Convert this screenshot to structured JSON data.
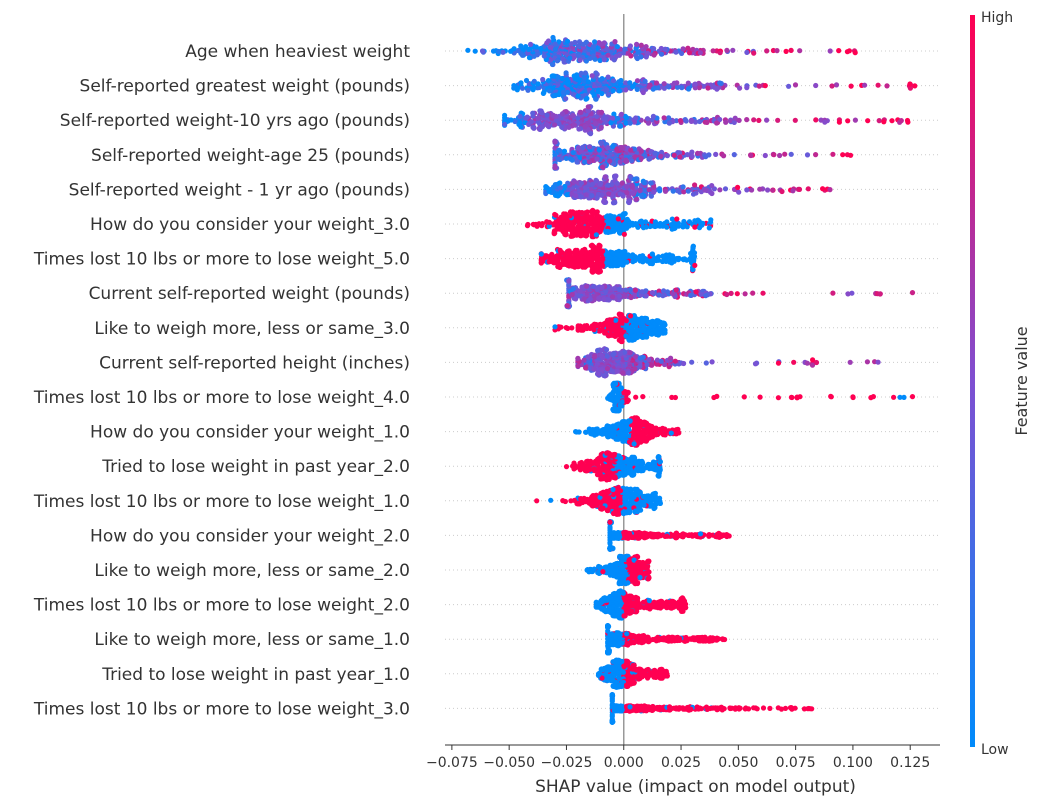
{
  "chart_data": {
    "type": "scatter",
    "subtype": "shap-beeswarm",
    "title": "",
    "xlabel": "SHAP value (impact on model output)",
    "ylabel": "",
    "xlim": [
      -0.078,
      0.138
    ],
    "xticks": [
      -0.075,
      -0.05,
      -0.025,
      0.0,
      0.025,
      0.05,
      0.075,
      0.1,
      0.125
    ],
    "xtick_labels": [
      "−0.075",
      "−0.050",
      "−0.025",
      "0.000",
      "0.025",
      "0.050",
      "0.075",
      "0.100",
      "0.125"
    ],
    "grid": "dotted horizontal row lines",
    "colorbar": {
      "label": "Feature value",
      "high_label": "High",
      "low_label": "Low",
      "low_color": "#008bfb",
      "mid_color": "#7f4fd1",
      "high_color": "#ff0052",
      "placement": "right"
    },
    "features": [
      {
        "name": "Age when heaviest weight",
        "min": -0.068,
        "max": 0.101,
        "core": [
          -0.05,
          0.035
        ],
        "peak": -0.02,
        "split": "low-left",
        "mix": "spread"
      },
      {
        "name": "Self-reported greatest weight (pounds)",
        "min": -0.048,
        "max": 0.127,
        "core": [
          -0.035,
          0.045
        ],
        "peak": -0.02,
        "split": "low-left",
        "mix": "spread"
      },
      {
        "name": "Self-reported weight-10 yrs ago (pounds)",
        "min": -0.052,
        "max": 0.124,
        "core": [
          -0.04,
          0.05
        ],
        "peak": -0.025,
        "split": "low-left",
        "mix": "purple"
      },
      {
        "name": "Self-reported weight-age 25 (pounds)",
        "min": -0.03,
        "max": 0.099,
        "core": [
          -0.03,
          0.035
        ],
        "peak": -0.01,
        "split": "low-right",
        "mix": "spread"
      },
      {
        "name": "Self-reported weight - 1 yr ago (pounds)",
        "min": -0.034,
        "max": 0.09,
        "core": [
          -0.03,
          0.04
        ],
        "peak": -0.01,
        "split": "low-left",
        "mix": "purple"
      },
      {
        "name": "How do you consider your weight_3.0",
        "min": -0.042,
        "max": 0.038,
        "core": [
          -0.03,
          0.03
        ],
        "peak": -0.015,
        "split": "binary-high-left",
        "mix": "binary"
      },
      {
        "name": "Times lost 10 lbs or more to lose weight_5.0",
        "min": -0.036,
        "max": 0.031,
        "core": [
          -0.03,
          0.03
        ],
        "peak": -0.015,
        "split": "binary-high-left",
        "mix": "binary"
      },
      {
        "name": "Current self-reported weight (pounds)",
        "min": -0.024,
        "max": 0.126,
        "core": [
          -0.025,
          0.035
        ],
        "peak": -0.01,
        "split": "low-right",
        "mix": "purple"
      },
      {
        "name": "Like to weigh more, less or same_3.0",
        "min": -0.03,
        "max": 0.018,
        "core": [
          -0.02,
          0.015
        ],
        "peak": 0.003,
        "split": "binary-high-left",
        "mix": "binary"
      },
      {
        "name": "Current self-reported height (inches)",
        "min": -0.02,
        "max": 0.111,
        "core": [
          -0.015,
          0.025
        ],
        "peak": -0.005,
        "split": "low-right",
        "mix": "purple"
      },
      {
        "name": "Times lost 10 lbs or more to lose weight_4.0",
        "min": -0.007,
        "max": 0.126,
        "core": [
          -0.005,
          0.002
        ],
        "peak": -0.003,
        "split": "binary-high-right",
        "mix": "binary"
      },
      {
        "name": "How do you consider your weight_1.0",
        "min": -0.021,
        "max": 0.024,
        "core": [
          -0.015,
          0.015
        ],
        "peak": 0.004,
        "split": "binary-high-right",
        "mix": "binary"
      },
      {
        "name": "Tried to lose weight in past year_2.0",
        "min": -0.025,
        "max": 0.016,
        "core": [
          -0.02,
          0.015
        ],
        "peak": -0.005,
        "split": "binary-high-left",
        "mix": "binary"
      },
      {
        "name": "Times lost 10 lbs or more to lose weight_1.0",
        "min": -0.038,
        "max": 0.016,
        "core": [
          -0.02,
          0.012
        ],
        "peak": 0.0,
        "split": "binary-high-left",
        "mix": "binary"
      },
      {
        "name": "How do you consider your weight_2.0",
        "min": -0.006,
        "max": 0.046,
        "core": [
          -0.004,
          0.04
        ],
        "peak": -0.003,
        "split": "binary-high-right",
        "mix": "binary"
      },
      {
        "name": "Like to weigh more, less or same_2.0",
        "min": -0.016,
        "max": 0.011,
        "core": [
          -0.012,
          0.01
        ],
        "peak": 0.002,
        "split": "binary-high-right",
        "mix": "binary"
      },
      {
        "name": "Times lost 10 lbs or more to lose weight_2.0",
        "min": -0.012,
        "max": 0.027,
        "core": [
          -0.004,
          0.025
        ],
        "peak": -0.002,
        "split": "binary-high-right",
        "mix": "binary"
      },
      {
        "name": "Like to weigh more, less or same_1.0",
        "min": -0.007,
        "max": 0.044,
        "core": [
          -0.004,
          0.035
        ],
        "peak": -0.002,
        "split": "binary-high-right",
        "mix": "binary"
      },
      {
        "name": "Tried to lose weight in past year_1.0",
        "min": -0.011,
        "max": 0.019,
        "core": [
          -0.008,
          0.015
        ],
        "peak": -0.002,
        "split": "binary-high-right",
        "mix": "binary"
      },
      {
        "name": "Times lost 10 lbs or more to lose weight_3.0",
        "min": -0.005,
        "max": 0.082,
        "core": [
          -0.004,
          0.05
        ],
        "peak": -0.002,
        "split": "binary-high-right",
        "mix": "binary"
      }
    ]
  }
}
